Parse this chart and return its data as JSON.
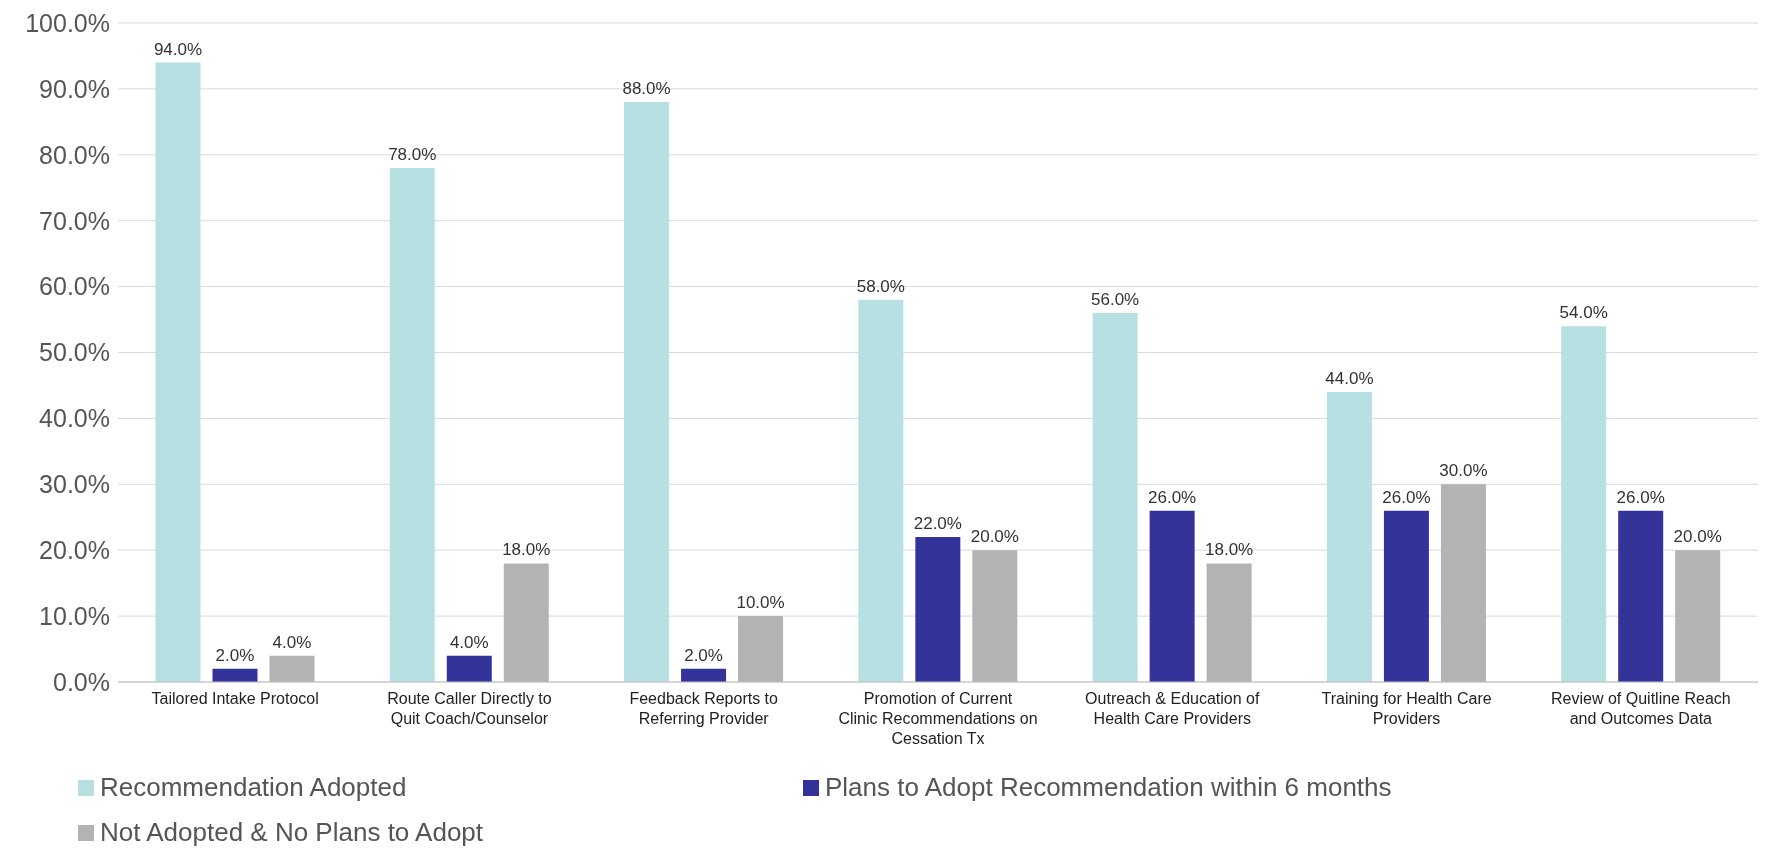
{
  "chart_data": {
    "type": "bar",
    "categories": [
      "Tailored Intake Protocol",
      "Route Caller Directly to Quit Coach/Counselor",
      "Feedback Reports to Referring Provider",
      "Promotion of Current Clinic Recommendations on Cessation Tx",
      "Outreach & Education of Health Care Providers",
      "Training for Health Care Providers",
      "Review of Quitline Reach and Outcomes Data"
    ],
    "series": [
      {
        "name": "Recommendation Adopted",
        "color": "#b7e0e3",
        "values": [
          94,
          78,
          88,
          58,
          56,
          44,
          54
        ],
        "value_labels": [
          "94.0%",
          "78.0%",
          "88.0%",
          "58.0%",
          "56.0%",
          "44.0%",
          "54.0%"
        ]
      },
      {
        "name": "Plans to Adopt Recommendation within 6 months",
        "color": "#333399",
        "values": [
          2,
          4,
          2,
          22,
          26,
          26,
          26
        ],
        "value_labels": [
          "2.0%",
          "4.0%",
          "2.0%",
          "22.0%",
          "26.0%",
          "26.0%",
          "26.0%"
        ]
      },
      {
        "name": "Not Adopted & No Plans to Adopt",
        "color": "#b3b3b3",
        "values": [
          4,
          18,
          10,
          20,
          18,
          30,
          20
        ],
        "value_labels": [
          "4.0%",
          "18.0%",
          "10.0%",
          "20.0%",
          "18.0%",
          "30.0%",
          "20.0%"
        ]
      }
    ],
    "ylim": [
      0,
      100
    ],
    "yticks": [
      {
        "value": 0,
        "label": "0.0%"
      },
      {
        "value": 10,
        "label": "10.0%"
      },
      {
        "value": 20,
        "label": "20.0%"
      },
      {
        "value": 30,
        "label": "30.0%"
      },
      {
        "value": 40,
        "label": "40.0%"
      },
      {
        "value": 50,
        "label": "50.0%"
      },
      {
        "value": 60,
        "label": "60.0%"
      },
      {
        "value": 70,
        "label": "70.0%"
      },
      {
        "value": 80,
        "label": "80.0%"
      },
      {
        "value": 90,
        "label": "90.0%"
      },
      {
        "value": 100,
        "label": "100.0%"
      }
    ],
    "grid": "y",
    "legend": "bottom"
  }
}
